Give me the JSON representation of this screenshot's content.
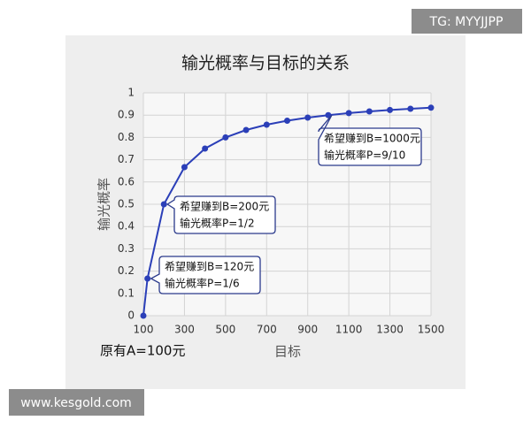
{
  "watermarks": [
    "TG: MYYJJPP",
    "www.kesgold.com"
  ],
  "chart_data": {
    "type": "line",
    "title": "输光概率与目标的关系",
    "x_label": "目标",
    "y_label": "输光概率",
    "note": "原有A=100元",
    "x": [
      100,
      120,
      200,
      300,
      400,
      500,
      600,
      700,
      800,
      900,
      1000,
      1100,
      1200,
      1300,
      1400,
      1500
    ],
    "values": [
      0,
      0.1667,
      0.5,
      0.6667,
      0.75,
      0.8,
      0.8333,
      0.8571,
      0.875,
      0.8889,
      0.9,
      0.9091,
      0.9167,
      0.9231,
      0.9286,
      0.9333
    ],
    "color": "#2b3fb8",
    "xlim": [
      100,
      1500
    ],
    "xticks": [
      100,
      300,
      500,
      700,
      900,
      1100,
      1300,
      1500
    ],
    "ylim": [
      0,
      1
    ],
    "yticks": [
      0,
      0.1,
      0.2,
      0.3,
      0.4,
      0.5,
      0.6,
      0.7,
      0.8,
      0.9,
      1
    ],
    "grid": true,
    "annotations": [
      {
        "lines": [
          "希望赚到B=120元",
          "输光概率P=1/6"
        ]
      },
      {
        "lines": [
          "希望赚到B=200元",
          "输光概率P=1/2"
        ]
      },
      {
        "lines": [
          "希望赚到B=1000元",
          "输光概率P=9/10"
        ]
      }
    ]
  }
}
